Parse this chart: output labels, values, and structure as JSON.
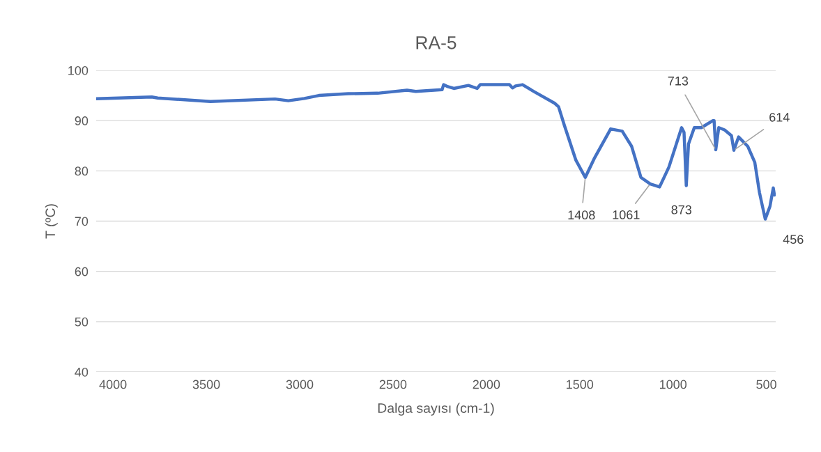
{
  "chart_data": {
    "type": "line",
    "title": "RA-5",
    "xlabel": "Dalga sayısı (cm-1)",
    "ylabel": "T (ºC)",
    "xlim": [
      4090,
      450
    ],
    "xticks": [
      4000,
      3500,
      3000,
      2500,
      2000,
      1500,
      1000,
      500
    ],
    "ylim": [
      40,
      100
    ],
    "yticks": [
      40,
      50,
      60,
      70,
      80,
      90,
      100
    ],
    "grid": "y",
    "legend": false,
    "marker": "none",
    "line_style": "solid",
    "series": [
      {
        "color": "#4472c4",
        "x": [
          4090,
          3792,
          3760,
          3478,
          3132,
          3061,
          2975,
          2897,
          2740,
          2582,
          2425,
          2378,
          2237,
          2229,
          2206,
          2174,
          2096,
          2049,
          2033,
          1876,
          1860,
          1843,
          1806,
          1744,
          1634,
          1613,
          1582,
          1520,
          1470,
          1420,
          1334,
          1272,
          1222,
          1172,
          1122,
          1072,
          1022,
          954,
          941,
          929,
          917,
          886,
          848,
          786,
          780,
          771,
          755,
          724,
          687,
          674,
          649,
          600,
          562,
          537,
          506,
          481,
          463,
          457
        ],
        "values": [
          94.35,
          94.7,
          94.5,
          93.8,
          94.3,
          93.95,
          94.4,
          95.0,
          95.35,
          95.45,
          96.05,
          95.8,
          96.15,
          97.15,
          96.75,
          96.4,
          97.0,
          96.4,
          97.15,
          97.15,
          96.5,
          96.9,
          97.15,
          95.75,
          93.45,
          92.75,
          89.05,
          82.1,
          78.7,
          82.6,
          88.35,
          87.9,
          84.9,
          78.7,
          77.4,
          76.8,
          80.75,
          88.6,
          87.65,
          77.05,
          85.35,
          88.6,
          88.6,
          90.0,
          90.0,
          84.2,
          88.6,
          88.15,
          87.0,
          84.1,
          86.75,
          84.9,
          81.7,
          75.7,
          70.4,
          72.9,
          76.6,
          75.2
        ]
      }
    ],
    "annotations": [
      {
        "text": "1408",
        "x": 1470,
        "y": 78.7
      },
      {
        "text": "1061",
        "x": 1122,
        "y": 77.4
      },
      {
        "text": "873",
        "x": 929,
        "y": 77.05
      },
      {
        "text": "713",
        "x": 771,
        "y": 84.2
      },
      {
        "text": "614",
        "x": 674,
        "y": 84.1
      },
      {
        "text": "456",
        "x": 506,
        "y": 70.4
      }
    ]
  }
}
